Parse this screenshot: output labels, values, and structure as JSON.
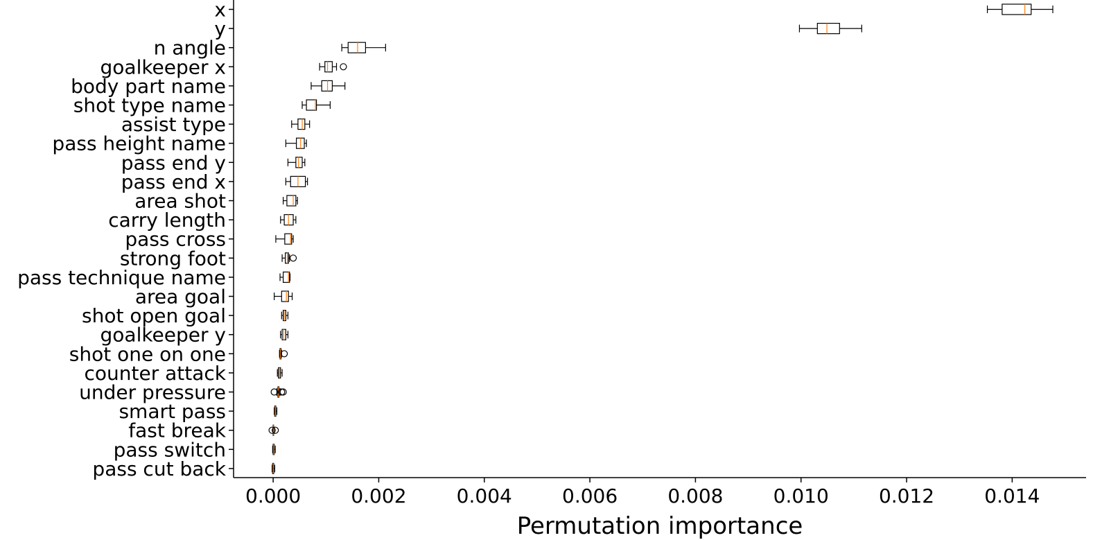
{
  "chart_data": {
    "type": "boxplot",
    "orientation": "horizontal",
    "title": "",
    "xlabel": "Permutation importance",
    "ylabel": "",
    "xlim": [
      -0.00075,
      0.0154
    ],
    "xticks": [
      0.0,
      0.002,
      0.004,
      0.006,
      0.008,
      0.01,
      0.012,
      0.014
    ],
    "xtick_labels": [
      "0.000",
      "0.002",
      "0.004",
      "0.006",
      "0.008",
      "0.010",
      "0.012",
      "0.014"
    ],
    "grid": false,
    "colors": {
      "box": "#000000",
      "median": "#ff7f0e"
    },
    "features": [
      {
        "name": "x",
        "whisker_low": 0.01353,
        "q1": 0.01381,
        "median": 0.01424,
        "q3": 0.01436,
        "whisker_high": 0.01477,
        "outliers": []
      },
      {
        "name": "y",
        "whisker_low": 0.00997,
        "q1": 0.01031,
        "median": 0.01049,
        "q3": 0.01073,
        "whisker_high": 0.01115,
        "outliers": []
      },
      {
        "name": "n angle",
        "whisker_low": 0.0013,
        "q1": 0.00142,
        "median": 0.0016,
        "q3": 0.00175,
        "whisker_high": 0.00213,
        "outliers": []
      },
      {
        "name": "goalkeeper x",
        "whisker_low": 0.00088,
        "q1": 0.00098,
        "median": 0.00103,
        "q3": 0.00112,
        "whisker_high": 0.0012,
        "outliers": [
          0.00133
        ]
      },
      {
        "name": "body part name",
        "whisker_low": 0.00072,
        "q1": 0.00092,
        "median": 0.00103,
        "q3": 0.00112,
        "whisker_high": 0.00136,
        "outliers": []
      },
      {
        "name": "shot type name",
        "whisker_low": 0.00055,
        "q1": 0.00063,
        "median": 0.0008,
        "q3": 0.00082,
        "whisker_high": 0.00108,
        "outliers": []
      },
      {
        "name": "assist type",
        "whisker_low": 0.00035,
        "q1": 0.00047,
        "median": 0.00055,
        "q3": 0.0006,
        "whisker_high": 0.00069,
        "outliers": []
      },
      {
        "name": "pass height name",
        "whisker_low": 0.00024,
        "q1": 0.00044,
        "median": 0.00052,
        "q3": 0.00059,
        "whisker_high": 0.00063,
        "outliers": []
      },
      {
        "name": "pass end y",
        "whisker_low": 0.00028,
        "q1": 0.00043,
        "median": 0.00048,
        "q3": 0.00055,
        "whisker_high": 0.0006,
        "outliers": []
      },
      {
        "name": "pass end x",
        "whisker_low": 0.00024,
        "q1": 0.00033,
        "median": 0.00047,
        "q3": 0.00061,
        "whisker_high": 0.00065,
        "outliers": []
      },
      {
        "name": "area shot",
        "whisker_low": 0.00019,
        "q1": 0.00026,
        "median": 0.00038,
        "q3": 0.00043,
        "whisker_high": 0.00046,
        "outliers": []
      },
      {
        "name": "carry length",
        "whisker_low": 0.00014,
        "q1": 0.00021,
        "median": 0.00029,
        "q3": 0.00038,
        "whisker_high": 0.00043,
        "outliers": []
      },
      {
        "name": "pass cross",
        "whisker_low": 5e-05,
        "q1": 0.00022,
        "median": 0.00033,
        "q3": 0.00035,
        "whisker_high": 0.00038,
        "outliers": []
      },
      {
        "name": "strong foot",
        "whisker_low": 0.00017,
        "q1": 0.00023,
        "median": 0.00027,
        "q3": 0.00029,
        "whisker_high": 0.00031,
        "outliers": [
          0.00038
        ]
      },
      {
        "name": "pass technique name",
        "whisker_low": 0.00013,
        "q1": 0.00019,
        "median": 0.00029,
        "q3": 0.00031,
        "whisker_high": 0.00032,
        "outliers": []
      },
      {
        "name": "area goal",
        "whisker_low": 2e-05,
        "q1": 0.00016,
        "median": 0.00025,
        "q3": 0.00029,
        "whisker_high": 0.00036,
        "outliers": []
      },
      {
        "name": "shot open goal",
        "whisker_low": 0.00016,
        "q1": 0.00019,
        "median": 0.00021,
        "q3": 0.00024,
        "whisker_high": 0.00028,
        "outliers": []
      },
      {
        "name": "goalkeeper y",
        "whisker_low": 0.00014,
        "q1": 0.00017,
        "median": 0.0002,
        "q3": 0.00024,
        "whisker_high": 0.00028,
        "outliers": []
      },
      {
        "name": "shot one on one",
        "whisker_low": 0.00012,
        "q1": 0.00013,
        "median": 0.00014,
        "q3": 0.00015,
        "whisker_high": 0.00016,
        "outliers": [
          0.00021
        ]
      },
      {
        "name": "counter attack",
        "whisker_low": 8e-05,
        "q1": 0.0001,
        "median": 0.00012,
        "q3": 0.00014,
        "whisker_high": 0.00017,
        "outliers": []
      },
      {
        "name": "under pressure",
        "whisker_low": 7e-05,
        "q1": 9e-05,
        "median": 0.0001,
        "q3": 0.00011,
        "whisker_high": 0.00013,
        "outliers": [
          2e-05,
          0.00016,
          0.00019
        ]
      },
      {
        "name": "smart pass",
        "whisker_low": 2e-05,
        "q1": 3e-05,
        "median": 4e-05,
        "q3": 5e-05,
        "whisker_high": 7e-05,
        "outliers": []
      },
      {
        "name": "fast break",
        "whisker_low": 0.0,
        "q1": 0.0,
        "median": 1e-05,
        "q3": 1e-05,
        "whisker_high": 2e-05,
        "outliers": [
          -2e-05,
          4e-05
        ]
      },
      {
        "name": "pass switch",
        "whisker_low": -1e-05,
        "q1": 0.0,
        "median": 1e-05,
        "q3": 2e-05,
        "whisker_high": 4e-05,
        "outliers": []
      },
      {
        "name": "pass cut back",
        "whisker_low": -2e-05,
        "q1": -1e-05,
        "median": 0.0,
        "q3": 1e-05,
        "whisker_high": 3e-05,
        "outliers": []
      }
    ]
  }
}
